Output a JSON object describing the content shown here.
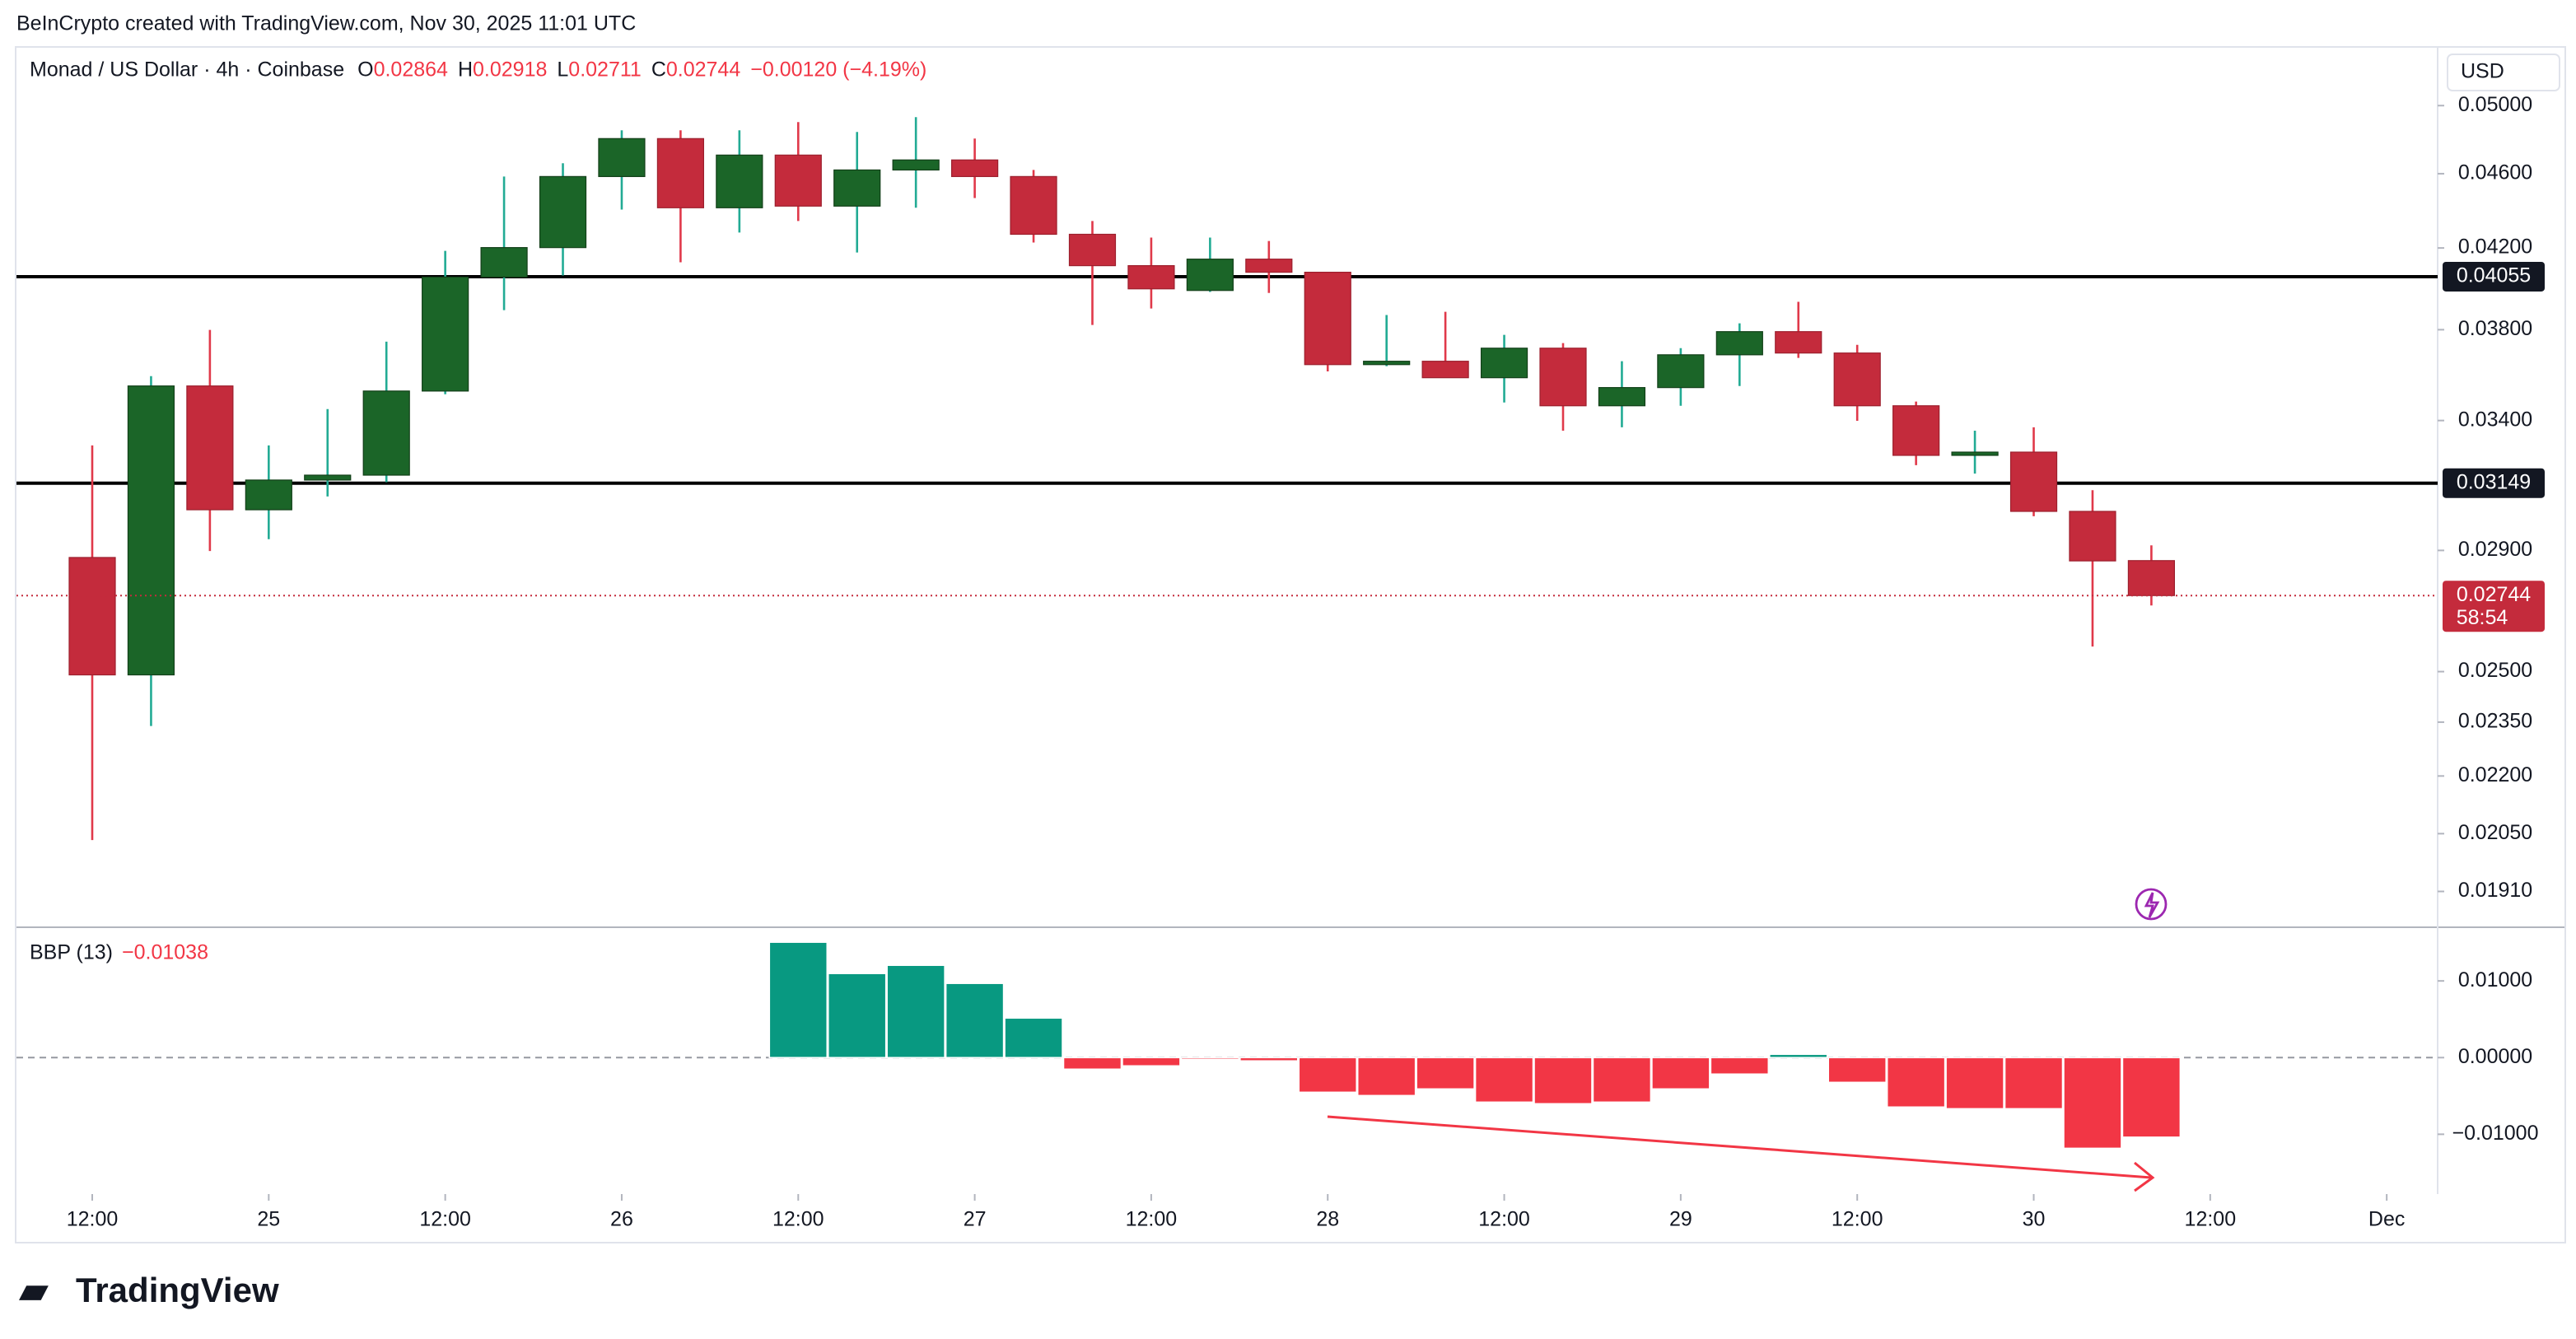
{
  "attribution": "BeInCrypto created with TradingView.com, Nov 30, 2025 11:01 UTC",
  "footer": "TradingView",
  "chart_data": [
    {
      "type": "candlestick",
      "title": "Monad / US Dollar · 4h · Coinbase",
      "currency": "USD",
      "ohlc_names": [
        "O",
        "H",
        "L",
        "C"
      ],
      "change_label": "−0.00120 (−4.19%)",
      "countdown": "58:54",
      "log": true,
      "ylim": [
        0.01828,
        0.05367
      ],
      "yticks": [
        {
          "value": 0.05,
          "label": "0.05000"
        },
        {
          "value": 0.046,
          "label": "0.04600"
        },
        {
          "value": 0.042,
          "label": "0.04200"
        },
        {
          "value": 0.038,
          "label": "0.03800"
        },
        {
          "value": 0.034,
          "label": "0.03400"
        },
        {
          "value": 0.029,
          "label": "0.02900"
        },
        {
          "value": 0.025,
          "label": "0.02500"
        },
        {
          "value": 0.0235,
          "label": "0.02350"
        },
        {
          "value": 0.022,
          "label": "0.02200"
        },
        {
          "value": 0.0205,
          "label": "0.02050"
        },
        {
          "value": 0.0191,
          "label": "0.01910"
        }
      ],
      "xticks": [
        {
          "value": 0,
          "label": "12:00"
        },
        {
          "value": 3,
          "label": "25"
        },
        {
          "value": 6,
          "label": "12:00"
        },
        {
          "value": 9,
          "label": "26"
        },
        {
          "value": 12,
          "label": "12:00"
        },
        {
          "value": 15,
          "label": "27"
        },
        {
          "value": 18,
          "label": "12:00"
        },
        {
          "value": 21,
          "label": "28"
        },
        {
          "value": 24,
          "label": "12:00"
        },
        {
          "value": 27,
          "label": "29"
        },
        {
          "value": 30,
          "label": "12:00"
        },
        {
          "value": 33,
          "label": "30"
        },
        {
          "value": 36,
          "label": "12:00"
        },
        {
          "value": 39,
          "label": "Dec"
        }
      ],
      "up_color": "#1b6528",
      "down_color": "#c42b3c",
      "up_wick": "#22ab94",
      "down_wick": "#e0394a",
      "hlines": [
        0.04055,
        0.03149
      ],
      "open": [
        0.02875,
        0.0249,
        0.03547,
        0.03048,
        0.03161,
        0.0318,
        0.03525,
        0.04053,
        0.04202,
        0.04584,
        0.04802,
        0.04412,
        0.04706,
        0.04421,
        0.04621,
        0.04678,
        0.04584,
        0.04271,
        0.0411,
        0.03987,
        0.04143,
        0.04077,
        0.03641,
        0.03656,
        0.03583,
        0.03715,
        0.03462,
        0.0354,
        0.03685,
        0.03791,
        0.03693,
        0.03462,
        0.03258,
        0.03271,
        0.03042,
        0.02864
      ],
      "high": [
        0.03298,
        0.0359,
        0.03799,
        0.03298,
        0.03448,
        0.03745,
        0.04185,
        0.04584,
        0.04659,
        0.04851,
        0.04851,
        0.04851,
        0.049,
        0.04841,
        0.0493,
        0.04802,
        0.04621,
        0.04341,
        0.04254,
        0.04254,
        0.04236,
        0.04077,
        0.03869,
        0.03884,
        0.03776,
        0.03738,
        0.03656,
        0.03715,
        0.0383,
        0.03932,
        0.0373,
        0.0348,
        0.03358,
        0.03372,
        0.03122,
        0.02918
      ],
      "low": [
        0.02034,
        0.02339,
        0.02898,
        0.0294,
        0.03098,
        0.03153,
        0.03511,
        0.03892,
        0.04061,
        0.04402,
        0.04127,
        0.0428,
        0.04341,
        0.04177,
        0.04412,
        0.04465,
        0.04228,
        0.03822,
        0.039,
        0.0398,
        0.03975,
        0.03611,
        0.03634,
        0.03583,
        0.03476,
        0.03358,
        0.03372,
        0.03462,
        0.03547,
        0.03671,
        0.03399,
        0.03219,
        0.03186,
        0.03024,
        0.02578,
        0.02711
      ],
      "close": [
        0.0249,
        0.03547,
        0.03048,
        0.03161,
        0.0318,
        0.03525,
        0.04053,
        0.04202,
        0.04584,
        0.04802,
        0.04412,
        0.04706,
        0.04421,
        0.04621,
        0.04678,
        0.04584,
        0.04271,
        0.0411,
        0.03995,
        0.04143,
        0.04077,
        0.03641,
        0.03656,
        0.03583,
        0.03715,
        0.03462,
        0.0354,
        0.03685,
        0.03791,
        0.03693,
        0.03462,
        0.03258,
        0.03271,
        0.03042,
        0.02863,
        0.02744
      ]
    },
    {
      "type": "bar",
      "title": "BBP (13)",
      "legend_value": "−0.01038",
      "ylim": [
        -0.0178,
        0.017
      ],
      "yticks": [
        {
          "value": 0.01,
          "label": "0.01000"
        },
        {
          "value": 0,
          "label": "0.00000"
        },
        {
          "value": -0.01,
          "label": "−0.01000"
        }
      ],
      "pos_color": "#089981",
      "neg_color": "#f23645",
      "values": [
        null,
        null,
        null,
        null,
        null,
        null,
        null,
        null,
        null,
        null,
        null,
        null,
        0.01505,
        0.01097,
        0.01204,
        0.00968,
        0.00516,
        -0.00151,
        -0.00108,
        -0.00022,
        -0.00043,
        -0.00452,
        -0.00495,
        -0.00409,
        -0.00581,
        -0.00602,
        -0.00581,
        -0.00409,
        -0.00215,
        0.00043,
        -0.00323,
        -0.00645,
        -0.00667,
        -0.00667,
        -0.01183,
        -0.01038
      ]
    }
  ]
}
